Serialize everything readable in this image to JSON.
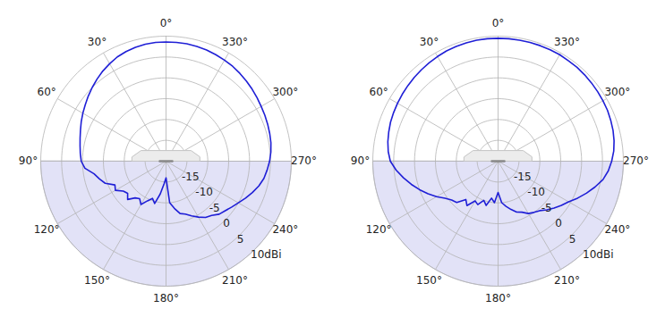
{
  "chart_data": [
    {
      "type": "polar",
      "color": "#1f1fd6",
      "grid": true,
      "xlim": [
        0,
        360
      ],
      "xticks": [
        {
          "value": 0,
          "label": "0°"
        },
        {
          "value": 30,
          "label": "30°"
        },
        {
          "value": 60,
          "label": "60°"
        },
        {
          "value": 90,
          "label": "90°"
        },
        {
          "value": 120,
          "label": "120°"
        },
        {
          "value": 150,
          "label": "150°"
        },
        {
          "value": 180,
          "label": "180°"
        },
        {
          "value": 210,
          "label": "210°"
        },
        {
          "value": 240,
          "label": "240°"
        },
        {
          "value": 270,
          "label": "270°"
        },
        {
          "value": 300,
          "label": "300°"
        },
        {
          "value": 330,
          "label": "330°"
        }
      ],
      "ylim": [
        -20,
        10
      ],
      "yticks": [
        -15,
        -10,
        -5,
        0,
        5,
        {
          "value": 10,
          "label": "10dBi"
        }
      ],
      "x": [
        0,
        5,
        10,
        15,
        20,
        25,
        30,
        35,
        40,
        45,
        50,
        55,
        60,
        65,
        70,
        75,
        80,
        85,
        90,
        95,
        100,
        105,
        110,
        115,
        120,
        125,
        130,
        135,
        140,
        145,
        150,
        155,
        160,
        165,
        170,
        175,
        180,
        185,
        190,
        195,
        200,
        205,
        210,
        215,
        220,
        225,
        230,
        235,
        240,
        245,
        250,
        255,
        260,
        265,
        270,
        275,
        280,
        285,
        290,
        295,
        300,
        305,
        310,
        315,
        320,
        325,
        330,
        335,
        340,
        345,
        350,
        355
      ],
      "values": [
        8.6,
        8.6,
        8.5,
        8.3,
        8.0,
        7.6,
        7.0,
        6.4,
        5.7,
        5.0,
        4.3,
        3.6,
        3.0,
        2.4,
        1.8,
        1.3,
        0.9,
        0.6,
        0.3,
        -0.5,
        -2.5,
        -3.5,
        -4.5,
        -6.5,
        -6.0,
        -7.5,
        -8.0,
        -7.0,
        -8.5,
        -9.0,
        -8.0,
        -9.5,
        -10.5,
        -9.5,
        -12.0,
        -14.5,
        -16.0,
        -10.0,
        -8.5,
        -7.0,
        -6.5,
        -5.5,
        -4.5,
        -3.5,
        -3.0,
        -2.0,
        -1.5,
        -0.8,
        0.0,
        1.0,
        2.0,
        3.0,
        3.8,
        4.3,
        4.8,
        5.2,
        5.5,
        5.7,
        5.9,
        6.1,
        6.3,
        6.6,
        6.9,
        7.2,
        7.5,
        7.8,
        8.0,
        8.2,
        8.4,
        8.5,
        8.6,
        8.6
      ]
    },
    {
      "type": "polar",
      "color": "#1f1fd6",
      "grid": true,
      "xlim": [
        0,
        360
      ],
      "xticks": [
        {
          "value": 0,
          "label": "0°"
        },
        {
          "value": 30,
          "label": "30°"
        },
        {
          "value": 60,
          "label": "60°"
        },
        {
          "value": 90,
          "label": "90°"
        },
        {
          "value": 120,
          "label": "120°"
        },
        {
          "value": 150,
          "label": "150°"
        },
        {
          "value": 180,
          "label": "180°"
        },
        {
          "value": 210,
          "label": "210°"
        },
        {
          "value": 240,
          "label": "240°"
        },
        {
          "value": 270,
          "label": "270°"
        },
        {
          "value": 300,
          "label": "300°"
        },
        {
          "value": 330,
          "label": "330°"
        }
      ],
      "ylim": [
        -20,
        10
      ],
      "yticks": [
        -15,
        -10,
        -5,
        0,
        5,
        {
          "value": 10,
          "label": "10dBi"
        }
      ],
      "x": [
        0,
        5,
        10,
        15,
        20,
        25,
        30,
        35,
        40,
        45,
        50,
        55,
        60,
        65,
        70,
        75,
        80,
        85,
        90,
        95,
        100,
        105,
        110,
        115,
        120,
        125,
        130,
        135,
        140,
        145,
        150,
        155,
        160,
        165,
        170,
        175,
        180,
        185,
        190,
        195,
        200,
        205,
        210,
        215,
        220,
        225,
        230,
        235,
        240,
        245,
        250,
        255,
        260,
        265,
        270,
        275,
        280,
        285,
        290,
        295,
        300,
        305,
        310,
        315,
        320,
        325,
        330,
        335,
        340,
        345,
        350,
        355
      ],
      "values": [
        9.5,
        9.5,
        9.5,
        9.4,
        9.3,
        9.2,
        9.0,
        8.8,
        8.6,
        8.4,
        8.2,
        8.0,
        7.8,
        7.6,
        7.4,
        7.1,
        6.8,
        6.4,
        5.8,
        4.5,
        3.0,
        1.5,
        0.0,
        -1.5,
        -3.0,
        -4.5,
        -5.5,
        -6.0,
        -8.0,
        -7.0,
        -9.0,
        -8.5,
        -10.0,
        -9.0,
        -11.0,
        -10.0,
        -12.5,
        -10.0,
        -9.0,
        -8.0,
        -7.0,
        -6.5,
        -5.5,
        -5.0,
        -4.5,
        -3.5,
        -2.5,
        -1.5,
        -0.5,
        1.0,
        2.5,
        4.0,
        5.5,
        6.5,
        7.2,
        7.8,
        8.2,
        8.5,
        8.7,
        8.9,
        9.0,
        9.1,
        9.2,
        9.3,
        9.4,
        9.4,
        9.5,
        9.5,
        9.5,
        9.5,
        9.5,
        9.5
      ]
    }
  ]
}
